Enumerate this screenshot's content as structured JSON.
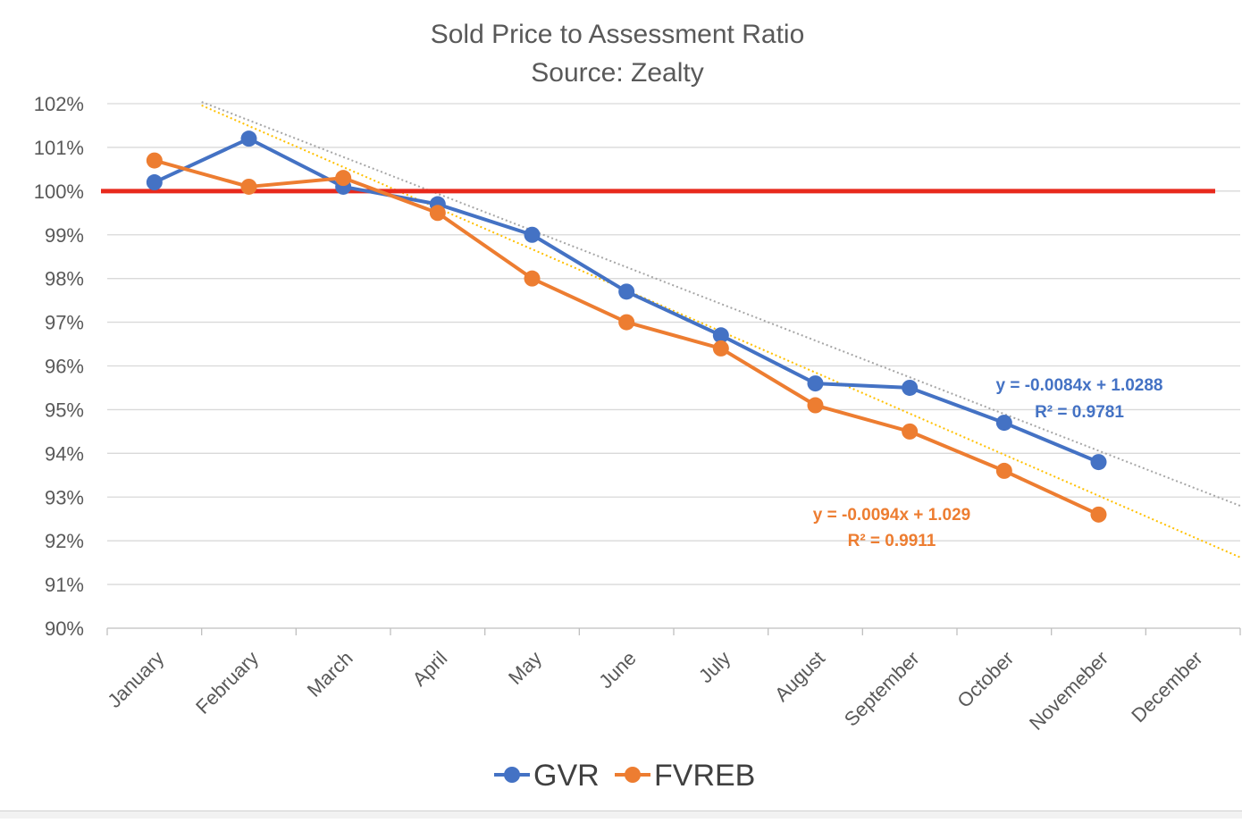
{
  "chart_data": {
    "type": "line",
    "title": "Sold Price to Assessment Ratio",
    "subtitle": "Source: Zealty",
    "xlabel": "",
    "ylabel": "",
    "categories": [
      "January",
      "February",
      "March",
      "April",
      "May",
      "June",
      "July",
      "August",
      "September",
      "October",
      "Novemeber",
      "December"
    ],
    "ylim": [
      0.9,
      1.02
    ],
    "yticks": [
      "90%",
      "91%",
      "92%",
      "93%",
      "94%",
      "95%",
      "96%",
      "97%",
      "98%",
      "99%",
      "100%",
      "101%",
      "102%"
    ],
    "grid": true,
    "legend_position": "bottom",
    "reference_line": {
      "value": 1.0,
      "color": "#e8291c"
    },
    "series": [
      {
        "name": "GVR",
        "color": "#4472c4",
        "values": [
          1.002,
          1.012,
          1.001,
          0.997,
          0.99,
          0.977,
          0.967,
          0.956,
          0.955,
          0.947,
          0.938,
          null
        ],
        "trendline": {
          "slope": -0.0084,
          "intercept": 1.0288,
          "color": "#a6a6a6",
          "equation": "y = -0.0084x + 1.0288",
          "r2": "R² = 0.9781"
        }
      },
      {
        "name": "FVREB",
        "color": "#ed7d31",
        "values": [
          1.007,
          1.001,
          1.003,
          0.995,
          0.98,
          0.97,
          0.964,
          0.951,
          0.945,
          0.936,
          0.926,
          null
        ],
        "trendline": {
          "slope": -0.0094,
          "intercept": 1.029,
          "color": "#ffc000",
          "equation": "y = -0.0094x + 1.029",
          "r2": "R² = 0.9911"
        }
      }
    ]
  }
}
